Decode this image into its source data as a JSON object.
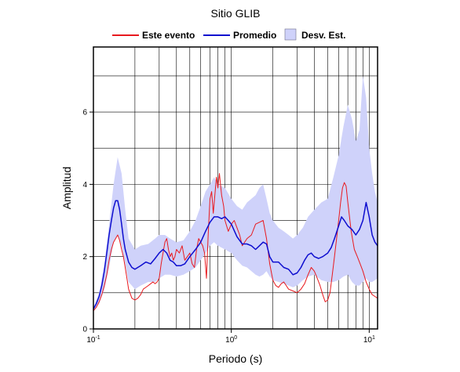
{
  "chart_data": {
    "type": "line",
    "title": "Sitio GLIB",
    "xlabel": "Periodo (s)",
    "ylabel": "Amplitud",
    "x_scale": "log",
    "xlim": [
      0.1,
      11.5
    ],
    "ylim": [
      0,
      7.8
    ],
    "x_ticks": [
      {
        "value": 0.1,
        "base": "10",
        "exp": "-1"
      },
      {
        "value": 1,
        "base": "10",
        "exp": "0"
      },
      {
        "value": 10,
        "base": "10",
        "exp": "1"
      }
    ],
    "y_ticks": [
      {
        "value": 0,
        "label": "0"
      },
      {
        "value": 2,
        "label": "2"
      },
      {
        "value": 4,
        "label": "4"
      },
      {
        "value": 6,
        "label": "6"
      }
    ],
    "grid": true,
    "legend_position": "top",
    "legend": [
      {
        "label": "Este evento",
        "color": "#e8191e",
        "kind": "line"
      },
      {
        "label": "Promedio",
        "color": "#0d0dcf",
        "kind": "line"
      },
      {
        "label": "Desv. Est.",
        "color": "#cfd2fa",
        "kind": "band"
      }
    ],
    "series": [
      {
        "name": "Este evento",
        "color": "#e8191e",
        "x": [
          0.1,
          0.105,
          0.11,
          0.115,
          0.12,
          0.125,
          0.13,
          0.135,
          0.14,
          0.145,
          0.15,
          0.155,
          0.16,
          0.165,
          0.17,
          0.175,
          0.18,
          0.19,
          0.2,
          0.21,
          0.22,
          0.23,
          0.24,
          0.25,
          0.26,
          0.27,
          0.28,
          0.29,
          0.3,
          0.31,
          0.32,
          0.33,
          0.34,
          0.35,
          0.36,
          0.37,
          0.38,
          0.39,
          0.4,
          0.42,
          0.44,
          0.46,
          0.48,
          0.5,
          0.52,
          0.54,
          0.56,
          0.58,
          0.6,
          0.62,
          0.64,
          0.66,
          0.68,
          0.7,
          0.72,
          0.74,
          0.76,
          0.78,
          0.8,
          0.82,
          0.85,
          0.88,
          0.9,
          0.95,
          1.0,
          1.05,
          1.1,
          1.15,
          1.2,
          1.3,
          1.4,
          1.5,
          1.6,
          1.7,
          1.8,
          1.9,
          2.0,
          2.1,
          2.2,
          2.3,
          2.4,
          2.5,
          2.6,
          2.8,
          3.0,
          3.2,
          3.4,
          3.6,
          3.8,
          4.0,
          4.2,
          4.4,
          4.6,
          4.8,
          5.0,
          5.2,
          5.4,
          5.6,
          5.8,
          6.0,
          6.2,
          6.4,
          6.6,
          6.8,
          7.0,
          7.4,
          7.8,
          8.2,
          8.6,
          9.0,
          9.5,
          10.0,
          10.5,
          11.0,
          11.5
        ],
        "y": [
          0.5,
          0.6,
          0.75,
          0.95,
          1.2,
          1.5,
          1.9,
          2.2,
          2.4,
          2.5,
          2.6,
          2.45,
          2.2,
          2.0,
          1.7,
          1.4,
          1.1,
          0.85,
          0.8,
          0.85,
          0.95,
          1.1,
          1.15,
          1.2,
          1.25,
          1.3,
          1.25,
          1.3,
          1.4,
          1.8,
          2.1,
          2.4,
          2.5,
          2.2,
          2.0,
          2.1,
          1.9,
          2.0,
          2.2,
          2.1,
          2.3,
          1.9,
          2.0,
          2.1,
          1.8,
          1.7,
          2.2,
          2.5,
          2.4,
          2.3,
          2.1,
          1.4,
          2.6,
          3.6,
          3.8,
          3.2,
          3.7,
          4.2,
          3.9,
          4.3,
          3.7,
          3.4,
          3.0,
          2.7,
          2.9,
          3.0,
          2.8,
          2.6,
          2.3,
          2.5,
          2.6,
          2.9,
          2.95,
          3.0,
          2.5,
          1.8,
          1.35,
          1.2,
          1.15,
          1.25,
          1.3,
          1.2,
          1.1,
          1.05,
          1.0,
          1.1,
          1.25,
          1.5,
          1.7,
          1.6,
          1.4,
          1.2,
          0.95,
          0.75,
          0.8,
          1.0,
          1.5,
          2.0,
          2.5,
          3.0,
          3.5,
          3.9,
          4.05,
          3.95,
          3.5,
          2.7,
          2.2,
          2.0,
          1.8,
          1.6,
          1.3,
          1.1,
          0.95,
          0.9,
          0.85
        ]
      },
      {
        "name": "Promedio",
        "color": "#0d0dcf",
        "x": [
          0.1,
          0.105,
          0.11,
          0.115,
          0.12,
          0.125,
          0.13,
          0.135,
          0.14,
          0.145,
          0.15,
          0.155,
          0.16,
          0.165,
          0.17,
          0.18,
          0.19,
          0.2,
          0.22,
          0.24,
          0.26,
          0.28,
          0.3,
          0.32,
          0.34,
          0.36,
          0.38,
          0.4,
          0.43,
          0.46,
          0.5,
          0.55,
          0.6,
          0.65,
          0.7,
          0.75,
          0.8,
          0.85,
          0.9,
          0.95,
          1.0,
          1.1,
          1.2,
          1.3,
          1.4,
          1.5,
          1.6,
          1.7,
          1.8,
          1.9,
          2.0,
          2.2,
          2.4,
          2.6,
          2.8,
          3.0,
          3.2,
          3.4,
          3.6,
          3.8,
          4.0,
          4.3,
          4.6,
          5.0,
          5.3,
          5.6,
          6.0,
          6.3,
          6.6,
          7.0,
          7.5,
          8.0,
          8.5,
          9.0,
          9.5,
          10.0,
          10.5,
          11.0,
          11.5
        ],
        "y": [
          0.55,
          0.7,
          0.9,
          1.2,
          1.6,
          2.1,
          2.6,
          3.0,
          3.35,
          3.55,
          3.55,
          3.3,
          2.9,
          2.5,
          2.2,
          1.85,
          1.7,
          1.65,
          1.75,
          1.85,
          1.8,
          1.95,
          2.1,
          2.2,
          2.1,
          1.9,
          1.85,
          1.75,
          1.75,
          1.8,
          2.0,
          2.2,
          2.4,
          2.7,
          2.95,
          3.1,
          3.1,
          3.05,
          3.1,
          3.0,
          2.9,
          2.55,
          2.35,
          2.35,
          2.3,
          2.2,
          2.3,
          2.4,
          2.35,
          2.0,
          1.85,
          1.85,
          1.7,
          1.65,
          1.5,
          1.55,
          1.7,
          1.9,
          2.05,
          2.1,
          2.0,
          1.95,
          2.0,
          2.1,
          2.25,
          2.5,
          2.85,
          3.1,
          3.0,
          2.85,
          2.75,
          2.6,
          2.75,
          3.0,
          3.5,
          3.1,
          2.6,
          2.4,
          2.3
        ]
      }
    ],
    "band": {
      "name": "Desv. Est.",
      "color": "#cfd2fa",
      "x": [
        0.1,
        0.11,
        0.12,
        0.13,
        0.14,
        0.15,
        0.16,
        0.17,
        0.18,
        0.2,
        0.22,
        0.25,
        0.28,
        0.3,
        0.33,
        0.36,
        0.4,
        0.45,
        0.5,
        0.55,
        0.6,
        0.65,
        0.7,
        0.75,
        0.8,
        0.9,
        1.0,
        1.1,
        1.2,
        1.3,
        1.4,
        1.5,
        1.6,
        1.7,
        1.8,
        1.9,
        2.0,
        2.2,
        2.4,
        2.6,
        2.8,
        3.0,
        3.3,
        3.6,
        4.0,
        4.5,
        5.0,
        5.5,
        6.0,
        6.5,
        7.0,
        7.5,
        8.0,
        8.5,
        9.0,
        9.5,
        10.0,
        10.5,
        11.0,
        11.5
      ],
      "lower": [
        0.5,
        0.7,
        1.1,
        1.7,
        2.4,
        2.6,
        2.3,
        1.8,
        1.3,
        1.1,
        1.2,
        1.3,
        1.3,
        1.4,
        1.5,
        1.5,
        1.45,
        1.5,
        1.6,
        1.7,
        1.9,
        2.1,
        2.3,
        2.4,
        2.3,
        2.2,
        2.1,
        1.9,
        1.75,
        1.7,
        1.6,
        1.5,
        1.45,
        1.5,
        1.6,
        1.45,
        1.35,
        1.3,
        1.25,
        1.2,
        1.15,
        1.2,
        1.35,
        1.45,
        1.5,
        1.35,
        1.3,
        1.3,
        1.35,
        1.45,
        1.5,
        1.3,
        1.2,
        1.2,
        1.3,
        1.4,
        1.3,
        1.3,
        1.35,
        1.4
      ],
      "upper": [
        0.6,
        1.0,
        1.8,
        2.9,
        4.0,
        4.75,
        4.3,
        3.3,
        2.5,
        2.2,
        2.3,
        2.35,
        2.5,
        2.6,
        2.6,
        2.5,
        2.4,
        2.45,
        2.7,
        3.0,
        3.4,
        3.8,
        4.0,
        4.2,
        4.0,
        3.9,
        3.6,
        3.4,
        3.3,
        3.5,
        3.6,
        3.7,
        3.9,
        4.0,
        3.6,
        3.2,
        3.0,
        2.8,
        2.7,
        2.6,
        2.5,
        2.6,
        2.8,
        3.1,
        3.3,
        3.5,
        3.6,
        4.2,
        4.8,
        5.6,
        6.2,
        5.8,
        5.2,
        5.5,
        7.0,
        6.4,
        5.0,
        4.3,
        3.8,
        3.5
      ]
    }
  }
}
